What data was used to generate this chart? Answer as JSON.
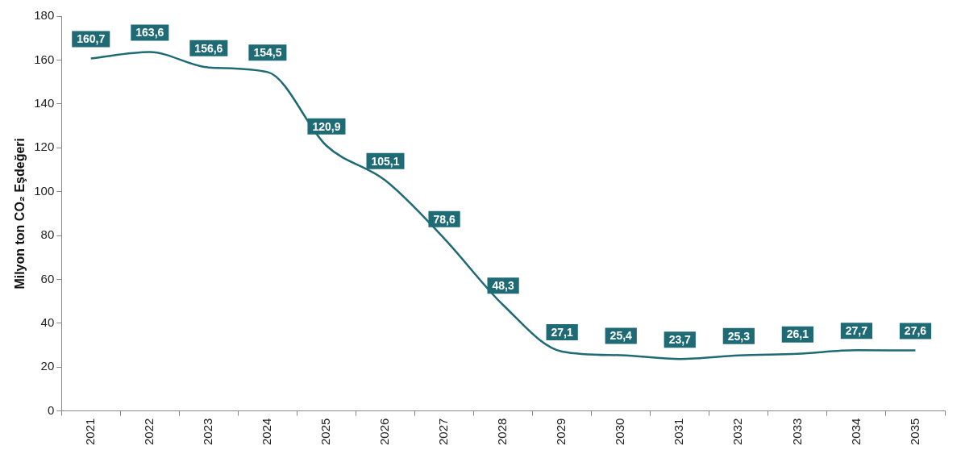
{
  "chart_data": {
    "type": "line",
    "ylabel": "Milyon ton CO₂ Eşdeğeri",
    "categories": [
      "2021",
      "2022",
      "2023",
      "2024",
      "2025",
      "2026",
      "2027",
      "2028",
      "2029",
      "2030",
      "2031",
      "2032",
      "2033",
      "2034",
      "2035"
    ],
    "series": [
      {
        "color": "#1f6b75",
        "values": [
          160.7,
          163.6,
          156.6,
          154.5,
          120.9,
          105.1,
          78.6,
          48.3,
          27.1,
          25.4,
          23.7,
          25.3,
          26.1,
          27.7,
          27.6
        ],
        "value_labels": [
          "160,7",
          "163,6",
          "156,6",
          "154,5",
          "120,9",
          "105,1",
          "78,6",
          "48,3",
          "27,1",
          "25,4",
          "23,7",
          "25,3",
          "26,1",
          "27,7",
          "27,6"
        ]
      }
    ],
    "ylim": [
      0,
      180
    ],
    "yticks": [
      0,
      20,
      40,
      60,
      80,
      100,
      120,
      140,
      160,
      180
    ],
    "marker": "none",
    "line_style": "solid"
  }
}
